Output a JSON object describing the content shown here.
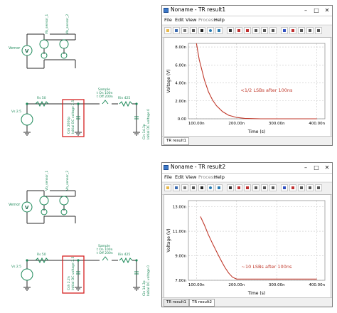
{
  "top": {
    "schematic": {
      "labels": {
        "vernor": "Vernor",
        "vb_sensor1": "Vb_sensor_1",
        "vb_sensor2": "Vb_sensor_2",
        "rs": "Rs 50",
        "vs": "Vs 2.5",
        "csh_line1": "Csh 2000p",
        "csh_line2": "Initial DC voltage 2.5",
        "sample": "Sample",
        "t_on": "t On 100n",
        "t_off": "t Off 200n",
        "rin": "Rin 425",
        "cin_line1": "Cin 14.3p",
        "cin_line2": "Initial DC voltage 0"
      }
    },
    "window": {
      "title": "Noname - TR result1",
      "menu": [
        "File",
        "Edit",
        "View",
        "Process",
        "Help"
      ],
      "menu_disabled": [
        false,
        false,
        false,
        true,
        false
      ],
      "tabs": [
        "TR result1"
      ],
      "active_tab": 0
    },
    "chart_data": {
      "type": "line",
      "title": "",
      "xlabel": "Time (s)",
      "ylabel": "Voltage (V)",
      "xlim": [
        8e-08,
        4.2e-07
      ],
      "ylim": [
        0,
        8.4e-09
      ],
      "xticks": [
        "100.00n",
        "200.00n",
        "300.00n",
        "400.00n"
      ],
      "xtick_values": [
        1e-07,
        2e-07,
        3e-07,
        4e-07
      ],
      "yticks": [
        "0.00",
        "2.00n",
        "4.00n",
        "6.00n",
        "8.00n"
      ],
      "ytick_values": [
        0,
        2e-09,
        4e-09,
        6e-09,
        8e-09
      ],
      "grid": true,
      "series": [
        {
          "color": "#c0392b",
          "x": [
            1e-07,
            1.07e-07,
            1.2e-07,
            1.3e-07,
            1.4e-07,
            1.5e-07,
            1.65e-07,
            1.8e-07,
            2e-07,
            2.2e-07,
            2.6e-07,
            3e-07,
            3.5e-07,
            4e-07
          ],
          "y": [
            8.4e-09,
            6.6e-09,
            4.3e-09,
            3e-09,
            2.1e-09,
            1.45e-09,
            8e-10,
            4e-10,
            1.5e-10,
            5e-11,
            0.0,
            0.0,
            0.0,
            0.0
          ]
        }
      ],
      "annotation": "<1/2 LSBs after 100ns",
      "annotation_color": "#c0392b"
    }
  },
  "bottom": {
    "schematic": {
      "labels": {
        "vernor": "Vernor",
        "vb_sensor1": "Vb_sensor_1",
        "vb_sensor2": "Vb_sensor_2",
        "rs": "Rs 50",
        "vs": "Vs 2.5",
        "csh_line1": "Csh 2.2n",
        "csh_line2": "Initial DC voltage 2.5",
        "sample": "Sample",
        "t_on": "t On 100n",
        "t_off": "t Off 200n",
        "rin": "Rin 425",
        "cin_line1": "Cin 14.3p",
        "cin_line2": "Initial DC voltage 0"
      }
    },
    "window": {
      "title": "Noname - TR result2",
      "menu": [
        "File",
        "Edit",
        "View",
        "Process",
        "Help"
      ],
      "menu_disabled": [
        false,
        false,
        false,
        true,
        false
      ],
      "tabs": [
        "TR result1",
        "TR result2"
      ],
      "active_tab": 1
    },
    "chart_data": {
      "type": "line",
      "title": "",
      "xlabel": "Time (s)",
      "ylabel": "Voltage (V)",
      "xlim": [
        8e-08,
        4.2e-07
      ],
      "ylim": [
        7e-09,
        1.35e-08
      ],
      "xticks": [
        "100.00n",
        "200.00n",
        "300.00n",
        "400.00n"
      ],
      "xtick_values": [
        1e-07,
        2e-07,
        3e-07,
        4e-07
      ],
      "yticks": [
        "7.00n",
        "9.00n",
        "11.00n",
        "13.00n"
      ],
      "ytick_values": [
        7e-09,
        9e-09,
        1.1e-08,
        1.3e-08
      ],
      "grid": true,
      "series": [
        {
          "color": "#c0392b",
          "x": [
            1.1e-07,
            1.2e-07,
            1.3e-07,
            1.4e-07,
            1.5e-07,
            1.6e-07,
            1.7e-07,
            1.8e-07,
            1.9e-07,
            2e-07,
            2.5e-07,
            3e-07,
            3.5e-07,
            4e-07
          ],
          "y": [
            1.22e-08,
            1.15e-08,
            1.07e-08,
            1e-08,
            9.35e-09,
            8.7e-09,
            8.1e-09,
            7.6e-09,
            7.25e-09,
            7.1e-09,
            7.1e-09,
            7.1e-09,
            7.1e-09,
            7.1e-09
          ]
        }
      ],
      "annotation": "~10 LSBs after 100ns",
      "annotation_color": "#c0392b"
    }
  }
}
